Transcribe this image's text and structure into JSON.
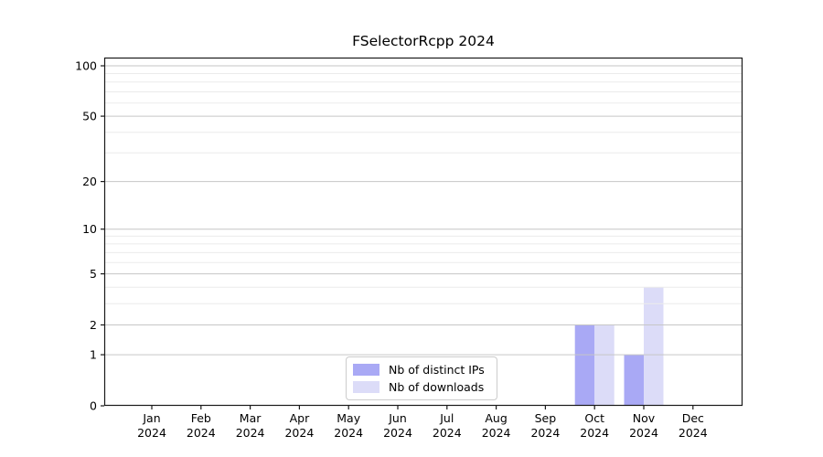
{
  "title": "FSelectorRcpp 2024",
  "chart_data": {
    "type": "bar",
    "title": "FSelectorRcpp 2024",
    "categories": [
      "Jan 2024",
      "Feb 2024",
      "Mar 2024",
      "Apr 2024",
      "May 2024",
      "Jun 2024",
      "Jul 2024",
      "Aug 2024",
      "Sep 2024",
      "Oct 2024",
      "Nov 2024",
      "Dec 2024"
    ],
    "series": [
      {
        "name": "Nb of distinct IPs",
        "color": "#a9a9f5",
        "values": [
          0,
          0,
          0,
          0,
          0,
          0,
          0,
          0,
          0,
          2,
          1,
          0
        ]
      },
      {
        "name": "Nb of downloads",
        "color": "#dcdcf8",
        "values": [
          0,
          0,
          0,
          0,
          0,
          0,
          0,
          0,
          0,
          2,
          4,
          0
        ]
      }
    ],
    "xlabel": "",
    "ylabel": "",
    "yscale": "log1p",
    "ylim": [
      0,
      112
    ],
    "y_major_ticks": [
      0,
      1,
      2,
      5,
      10,
      20,
      50,
      100
    ],
    "y_minor_ticks": [
      3,
      4,
      6,
      7,
      8,
      9,
      30,
      40,
      60,
      70,
      80,
      90
    ],
    "grid": true,
    "legend_position": "lower center",
    "colors": {
      "major_grid": "#c6c6c6",
      "minor_grid": "#ebebeb",
      "spine": "#1a1a1a",
      "text": "#000000",
      "background": "#ffffff"
    }
  }
}
